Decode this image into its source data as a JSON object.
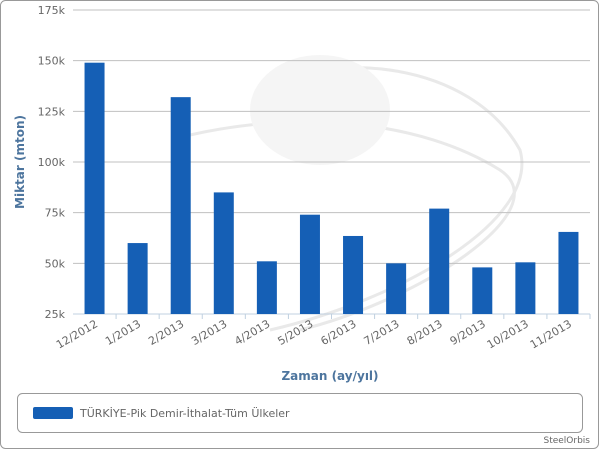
{
  "chart_data": {
    "type": "bar",
    "y_label": "Miktar (mton)",
    "x_label": "Zaman (ay/yıl)",
    "categories": [
      "12/2012",
      "1/2013",
      "2/2013",
      "3/2013",
      "4/2013",
      "5/2013",
      "6/2013",
      "7/2013",
      "8/2013",
      "9/2013",
      "10/2013",
      "11/2013"
    ],
    "series": [
      {
        "name": "TÜRKİYE-Pik Demir-İthalat-Tüm Ülkeler",
        "color": "#155fb5",
        "values": [
          149000,
          60000,
          132000,
          85000,
          51000,
          74000,
          63500,
          50000,
          77000,
          48000,
          50500,
          65500
        ]
      }
    ],
    "ylim": [
      25000,
      175000
    ],
    "yticks": [
      {
        "value": 25000,
        "label": "25k"
      },
      {
        "value": 50000,
        "label": "50k"
      },
      {
        "value": 75000,
        "label": "75k"
      },
      {
        "value": 100000,
        "label": "100k"
      },
      {
        "value": 125000,
        "label": "125k"
      },
      {
        "value": 150000,
        "label": "150k"
      },
      {
        "value": 175000,
        "label": "175k"
      }
    ],
    "grid": true,
    "credit": "SteelOrbis"
  }
}
